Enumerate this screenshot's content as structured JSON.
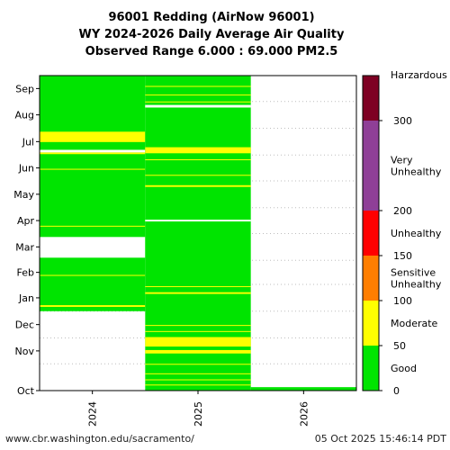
{
  "chart_data": {
    "type": "heatmap",
    "title": [
      "96001 Redding (AirNow 96001)",
      "WY 2024-2026 Daily Average Air Quality",
      "Observed Range 6.000 : 69.000 PM2.5"
    ],
    "x_categories": [
      "2024",
      "2025",
      "2026"
    ],
    "y_months": [
      "Oct",
      "Nov",
      "Dec",
      "Jan",
      "Feb",
      "Mar",
      "Apr",
      "May",
      "Jun",
      "Jul",
      "Aug",
      "Sep"
    ],
    "ylim_days": [
      0,
      365
    ],
    "columns": [
      {
        "year": "2024",
        "data_day_range": [
          92,
          365
        ],
        "blank_day_ranges": [
          [
            154,
            178
          ]
        ],
        "yellow_day_ranges": [
          [
            97,
            99
          ],
          [
            133,
            134
          ],
          [
            190,
            191
          ],
          [
            256,
            257
          ],
          [
            274,
            276
          ],
          [
            288,
            300
          ]
        ],
        "white_gap_day_ranges": [
          [
            276,
            279
          ]
        ]
      },
      {
        "year": "2025",
        "data_day_range": [
          0,
          365
        ],
        "blank_day_ranges": [],
        "yellow_day_ranges": [
          [
            6,
            7
          ],
          [
            12,
            13
          ],
          [
            19,
            20
          ],
          [
            30,
            31
          ],
          [
            43,
            47
          ],
          [
            51,
            62
          ],
          [
            68,
            69
          ],
          [
            75,
            76
          ],
          [
            112,
            114
          ],
          [
            120,
            121
          ],
          [
            236,
            238
          ],
          [
            249,
            250
          ],
          [
            267,
            268
          ],
          [
            275,
            282
          ],
          [
            334,
            335
          ],
          [
            342,
            343
          ],
          [
            352,
            353
          ]
        ],
        "white_gap_day_ranges": [
          [
            196,
            198
          ],
          [
            328,
            331
          ]
        ]
      },
      {
        "year": "2026",
        "data_day_range": [
          0,
          4
        ],
        "blank_day_ranges": [],
        "yellow_day_ranges": [],
        "white_gap_day_ranges": []
      }
    ],
    "colorbar": {
      "range": [
        0,
        350
      ],
      "ticks": [
        0,
        50,
        100,
        150,
        200,
        300
      ],
      "top_label": "Harzardous",
      "segments": [
        {
          "from": 0,
          "to": 50,
          "color": "#00e400",
          "label": "Good"
        },
        {
          "from": 50,
          "to": 100,
          "color": "#ffff00",
          "label": "Moderate"
        },
        {
          "from": 100,
          "to": 150,
          "color": "#ff7e00",
          "label": "Sensitive\nUnhealthy"
        },
        {
          "from": 150,
          "to": 200,
          "color": "#ff0000",
          "label": "Unhealthy"
        },
        {
          "from": 200,
          "to": 300,
          "color": "#8f3f97",
          "label": "Very\nUnhealthy"
        },
        {
          "from": 300,
          "to": 350,
          "color": "#7e0023",
          "label": ""
        }
      ]
    },
    "grid": true
  },
  "footer": {
    "source_url": "www.cbr.washington.edu/sacramento/",
    "timestamp": "05 Oct 2025 15:46:14 PDT"
  }
}
